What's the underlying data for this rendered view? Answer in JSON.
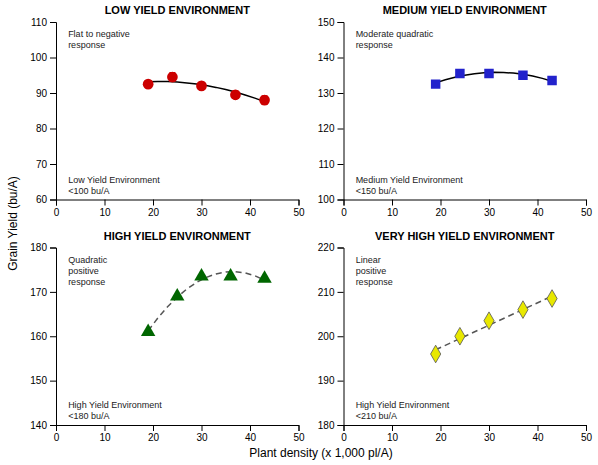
{
  "xlabel": "Plant density (x 1,000 pl/A)",
  "ylabel": "Grain Yield (bu/A)",
  "chart_data": [
    {
      "type": "scatter",
      "title": "LOW YIELD ENVIRONMENT",
      "annotations": [
        "Flat to negative\nresponse",
        "Low Yield Environment\n<100 bu/A"
      ],
      "xlim": [
        0,
        50
      ],
      "xticks": [
        0,
        10,
        20,
        30,
        40,
        50
      ],
      "ylim": [
        60,
        110
      ],
      "yticks": [
        60,
        70,
        80,
        90,
        100,
        110
      ],
      "grid": false,
      "series": [
        {
          "type": "scatter",
          "color": "#cc0000",
          "marker": "circle",
          "x": [
            19,
            24,
            30,
            37,
            43
          ],
          "values": [
            92.5,
            94.5,
            92.0,
            89.5,
            88.0
          ],
          "errors": [
            1.0,
            1.2,
            1.0,
            1.0,
            1.2
          ]
        },
        {
          "type": "line",
          "color": "#000000",
          "line_style": "solid",
          "x": [
            19,
            21,
            23,
            25,
            27,
            29,
            31,
            33,
            35,
            37,
            39,
            41,
            43
          ],
          "values": [
            93.2,
            93.25,
            93.21,
            93.08,
            92.85,
            92.52,
            92.1,
            91.58,
            90.97,
            90.26,
            89.46,
            88.56,
            87.56
          ]
        }
      ]
    },
    {
      "type": "scatter",
      "title": "MEDIUM YIELD ENVIRONMENT",
      "annotations": [
        "Moderate quadratic\nresponse",
        "Medium Yield Environment\n<150 bu/A"
      ],
      "xlim": [
        0,
        50
      ],
      "xticks": [
        0,
        10,
        20,
        30,
        40,
        50
      ],
      "ylim": [
        100,
        150
      ],
      "yticks": [
        100,
        110,
        120,
        130,
        140,
        150
      ],
      "grid": false,
      "series": [
        {
          "type": "scatter",
          "color": "#2222cc",
          "marker": "square",
          "x": [
            19,
            24,
            30,
            37,
            43
          ],
          "values": [
            132.5,
            135.5,
            135.5,
            135.0,
            133.5
          ],
          "errors": [
            0.8,
            0.8,
            0.8,
            0.8,
            0.8
          ]
        },
        {
          "type": "line",
          "color": "#000000",
          "line_style": "solid",
          "x": [
            19,
            21,
            23,
            25,
            27,
            29,
            31,
            33,
            35,
            37,
            39,
            41,
            43
          ],
          "values": [
            132.86,
            133.74,
            134.46,
            135.03,
            135.45,
            135.72,
            135.83,
            135.79,
            135.6,
            135.26,
            134.77,
            134.12,
            133.32
          ]
        }
      ]
    },
    {
      "type": "scatter",
      "title": "HIGH YIELD ENVIRONMENT",
      "annotations": [
        "Quadratic\npositive\nresponse",
        "High Yield Environment\n<180 bu/A"
      ],
      "xlim": [
        0,
        50
      ],
      "xticks": [
        0,
        10,
        20,
        30,
        40,
        50
      ],
      "ylim": [
        140,
        180
      ],
      "yticks": [
        140,
        150,
        160,
        170,
        180
      ],
      "grid": false,
      "series": [
        {
          "type": "scatter",
          "color": "#006600",
          "marker": "triangle",
          "x": [
            19,
            25,
            30,
            36,
            43
          ],
          "values": [
            161.0,
            169.0,
            173.5,
            173.5,
            173.0
          ]
        },
        {
          "type": "line",
          "color": "#555555",
          "line_style": "dashed",
          "x": [
            19,
            21,
            23,
            25,
            27,
            29,
            31,
            33,
            35,
            37,
            39,
            41,
            43
          ],
          "values": [
            161.22,
            164.11,
            166.65,
            168.83,
            170.66,
            172.14,
            173.27,
            174.05,
            174.47,
            174.54,
            174.26,
            173.63,
            172.64
          ]
        }
      ]
    },
    {
      "type": "scatter",
      "title": "VERY HIGH YIELD ENVIRONMENT",
      "annotations": [
        "Linear\npositive\nresponse",
        "High Yield Environment\n<210 bu/A"
      ],
      "xlim": [
        0,
        50
      ],
      "xticks": [
        0,
        10,
        20,
        30,
        40,
        50
      ],
      "ylim": [
        180,
        220
      ],
      "yticks": [
        180,
        190,
        200,
        210,
        220
      ],
      "grid": false,
      "series": [
        {
          "type": "scatter",
          "color": "#e8e800",
          "marker": "diamond",
          "x": [
            19,
            24,
            30,
            37,
            43
          ],
          "values": [
            196.0,
            200.0,
            203.5,
            206.0,
            208.5
          ]
        },
        {
          "type": "line",
          "color": "#555555",
          "line_style": "dashed",
          "x": [
            19,
            43
          ],
          "values": [
            196.95,
            209.05
          ]
        }
      ]
    }
  ]
}
